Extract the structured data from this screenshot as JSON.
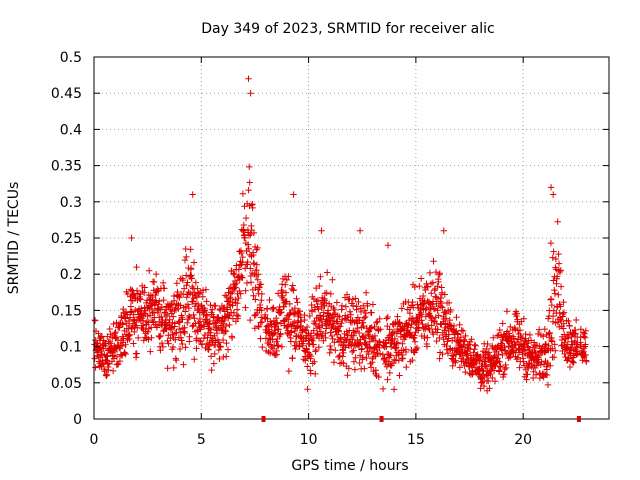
{
  "chart_data": {
    "type": "scatter",
    "title": "Day 349 of 2023, SRMTID for receiver alic",
    "xlabel": "GPS time / hours",
    "ylabel": "SRMTID / TECUs",
    "xlim": [
      0,
      24
    ],
    "ylim": [
      0,
      0.5
    ],
    "x_ticks": [
      0,
      5,
      10,
      15,
      20
    ],
    "x_tick_labels": [
      "0",
      "5",
      "10",
      "15",
      "20"
    ],
    "y_ticks": [
      0,
      0.05,
      0.1,
      0.15,
      0.2,
      0.25,
      0.3,
      0.35,
      0.4,
      0.45,
      0.5
    ],
    "y_tick_labels": [
      "0",
      "0.05",
      "0.1",
      "0.15",
      "0.2",
      "0.25",
      "0.3",
      "0.35",
      "0.4",
      "0.45",
      "0.5"
    ],
    "grid": true,
    "marker": "+",
    "color": "#e00000",
    "data_gap_markers_x": [
      7.9,
      13.4,
      22.6
    ],
    "envelope": {
      "description_hours": [
        0,
        0.5,
        1,
        1.5,
        2,
        2.5,
        3,
        3.5,
        4,
        4.5,
        5,
        5.5,
        6,
        6.5,
        7,
        7.2,
        7.5,
        8,
        8.5,
        9,
        9.5,
        10,
        10.5,
        11,
        11.5,
        12,
        12.5,
        13,
        13.5,
        14,
        14.5,
        15,
        15.5,
        16,
        16.5,
        17,
        17.5,
        18,
        18.5,
        19,
        19.5,
        20,
        20.5,
        21,
        21.3,
        21.6,
        22,
        22.5,
        22.9
      ],
      "median": [
        0.11,
        0.09,
        0.1,
        0.13,
        0.15,
        0.14,
        0.15,
        0.13,
        0.15,
        0.18,
        0.13,
        0.12,
        0.12,
        0.16,
        0.24,
        0.27,
        0.2,
        0.12,
        0.13,
        0.15,
        0.12,
        0.1,
        0.14,
        0.14,
        0.12,
        0.12,
        0.12,
        0.11,
        0.1,
        0.1,
        0.12,
        0.13,
        0.15,
        0.16,
        0.12,
        0.1,
        0.09,
        0.07,
        0.07,
        0.1,
        0.11,
        0.1,
        0.08,
        0.09,
        0.15,
        0.18,
        0.11,
        0.1,
        0.1
      ],
      "spread": [
        0.04,
        0.04,
        0.04,
        0.05,
        0.06,
        0.05,
        0.05,
        0.05,
        0.07,
        0.08,
        0.05,
        0.05,
        0.05,
        0.06,
        0.09,
        0.1,
        0.08,
        0.05,
        0.05,
        0.07,
        0.05,
        0.05,
        0.06,
        0.05,
        0.05,
        0.05,
        0.05,
        0.05,
        0.05,
        0.05,
        0.05,
        0.05,
        0.06,
        0.06,
        0.05,
        0.03,
        0.03,
        0.03,
        0.03,
        0.04,
        0.04,
        0.04,
        0.03,
        0.04,
        0.09,
        0.08,
        0.04,
        0.03,
        0.03
      ]
    },
    "peaks": [
      {
        "x": 1.75,
        "y": 0.25
      },
      {
        "x": 4.6,
        "y": 0.31
      },
      {
        "x": 7.2,
        "y": 0.47
      },
      {
        "x": 7.3,
        "y": 0.45
      },
      {
        "x": 9.3,
        "y": 0.31
      },
      {
        "x": 10.6,
        "y": 0.26
      },
      {
        "x": 12.4,
        "y": 0.26
      },
      {
        "x": 13.7,
        "y": 0.24
      },
      {
        "x": 16.3,
        "y": 0.26
      },
      {
        "x": 21.3,
        "y": 0.32
      },
      {
        "x": 21.4,
        "y": 0.31
      }
    ]
  }
}
